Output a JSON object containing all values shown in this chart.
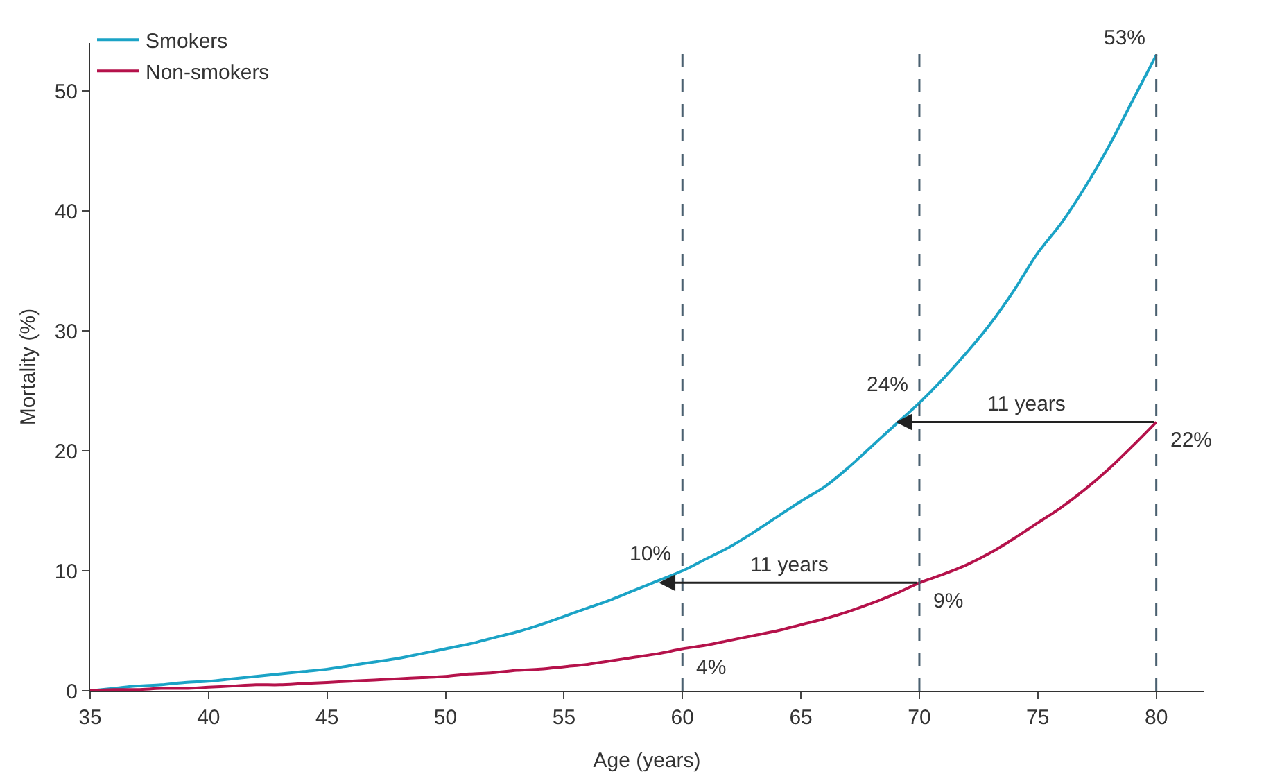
{
  "chart_data": {
    "type": "line",
    "xlabel": "Age (years)",
    "ylabel": "Mortality (%)",
    "x": [
      35,
      36,
      37,
      38,
      39,
      40,
      41,
      42,
      43,
      44,
      45,
      46,
      47,
      48,
      49,
      50,
      51,
      52,
      53,
      54,
      55,
      56,
      57,
      58,
      59,
      60,
      61,
      62,
      63,
      64,
      65,
      66,
      67,
      68,
      69,
      70,
      71,
      72,
      73,
      74,
      75,
      76,
      77,
      78,
      79,
      80
    ],
    "series": [
      {
        "name": "Smokers",
        "color": "#1ba3c6",
        "values": [
          0,
          0.2,
          0.4,
          0.5,
          0.7,
          0.8,
          1,
          1.2,
          1.4,
          1.6,
          1.8,
          2.1,
          2.4,
          2.7,
          3.1,
          3.5,
          3.9,
          4.4,
          4.9,
          5.5,
          6.2,
          6.9,
          7.6,
          8.4,
          9.2,
          10,
          11,
          12,
          13.2,
          14.5,
          15.8,
          17,
          18.6,
          20.4,
          22.2,
          24,
          26,
          28.2,
          30.6,
          33.4,
          36.5,
          39,
          42,
          45.4,
          49.2,
          53
        ]
      },
      {
        "name": "Non-smokers",
        "color": "#b5124b",
        "values": [
          0,
          0.1,
          0.1,
          0.2,
          0.2,
          0.3,
          0.4,
          0.5,
          0.5,
          0.6,
          0.7,
          0.8,
          0.9,
          1,
          1.1,
          1.2,
          1.4,
          1.5,
          1.7,
          1.8,
          2,
          2.2,
          2.5,
          2.8,
          3.1,
          3.5,
          3.8,
          4.2,
          4.6,
          5,
          5.5,
          6,
          6.6,
          7.3,
          8.1,
          9,
          9.7,
          10.5,
          11.5,
          12.7,
          14,
          15.3,
          16.8,
          18.5,
          20.4,
          22.4
        ]
      }
    ],
    "xlim": [
      35,
      82
    ],
    "xticks": [
      35,
      40,
      45,
      50,
      55,
      60,
      65,
      70,
      75,
      80
    ],
    "ylim": [
      0,
      54
    ],
    "yticks": [
      0,
      10,
      20,
      30,
      40,
      50
    ],
    "grid": false,
    "legend": "top left",
    "line_style": "solid",
    "marker": "none",
    "ref_lines": [
      {
        "axis": "x",
        "value": 60,
        "color": "#4a6070",
        "line_style": "dashed"
      },
      {
        "axis": "x",
        "value": 70,
        "color": "#4a6070",
        "line_style": "dashed"
      },
      {
        "axis": "x",
        "value": 80,
        "color": "#4a6070",
        "line_style": "dashed"
      }
    ],
    "annotations": [
      {
        "text": "53%",
        "x": 80,
        "y": 53
      },
      {
        "text": "24%",
        "x": 70,
        "y": 24
      },
      {
        "text": "10%",
        "x": 60,
        "y": 10
      },
      {
        "text": "22%",
        "x": 80,
        "y": 22.4
      },
      {
        "text": "9%",
        "x": 70,
        "y": 9
      },
      {
        "text": "4%",
        "x": 60,
        "y": 3.5
      },
      "11 years",
      "11 years"
    ]
  }
}
